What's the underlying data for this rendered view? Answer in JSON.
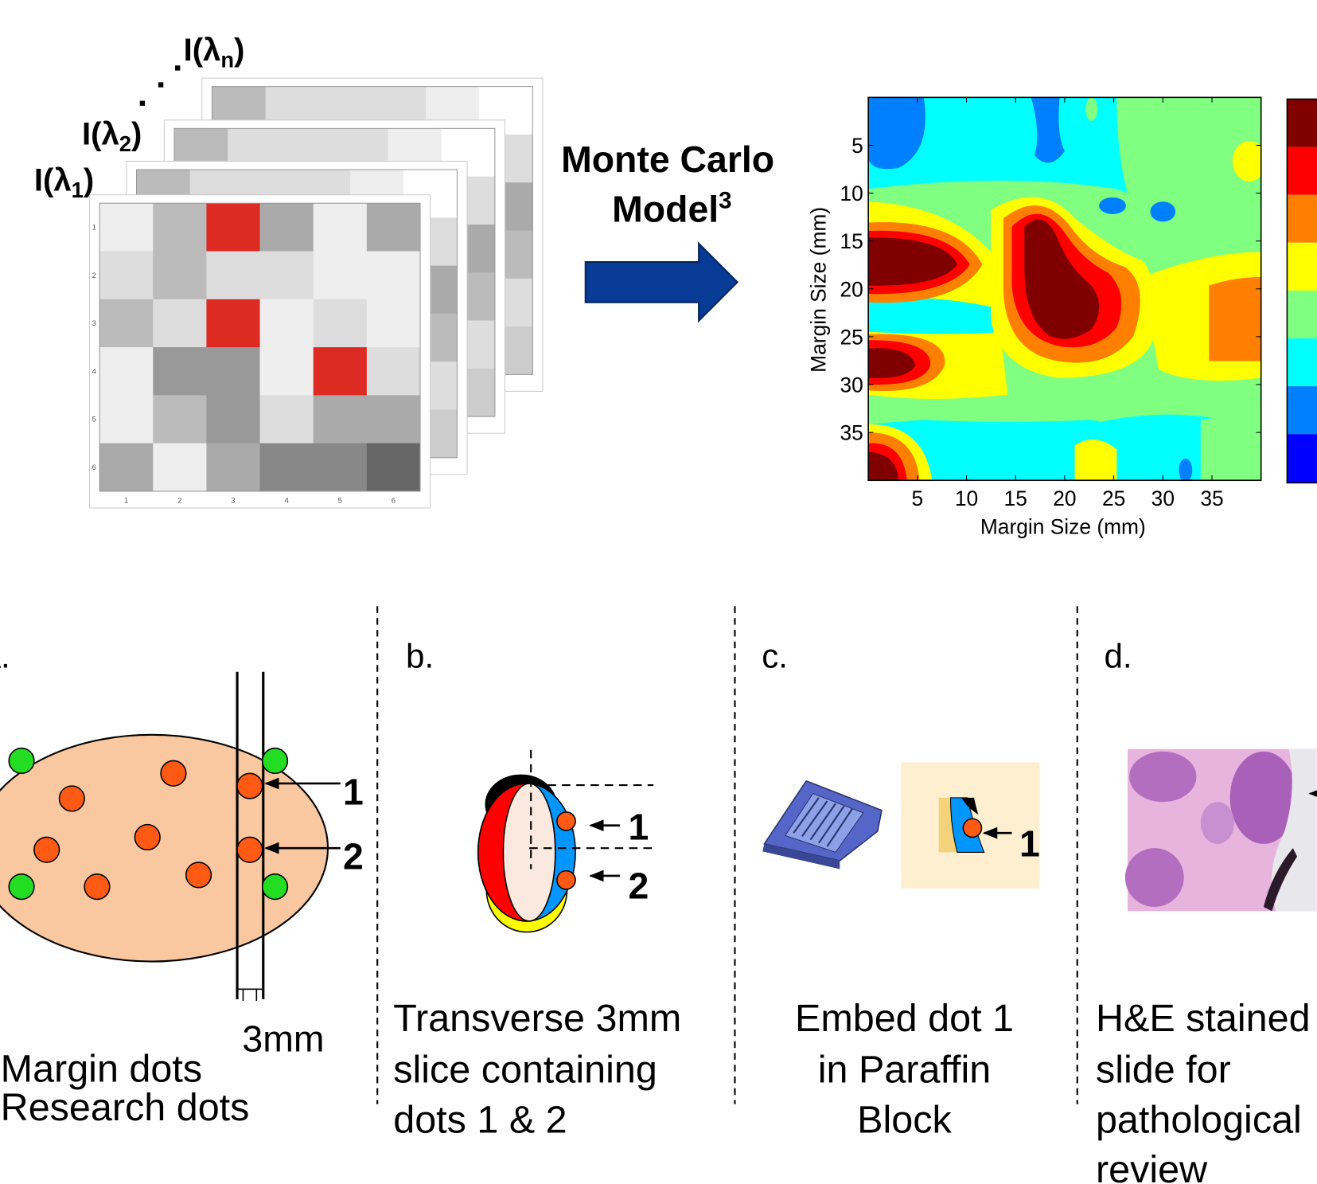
{
  "stack_labels": [
    {
      "prefix": "I(λ",
      "sub": "n",
      "suffix": ")"
    },
    {
      "prefix": "I(λ",
      "sub": "2",
      "suffix": ")"
    },
    {
      "prefix": "I(λ",
      "sub": "1",
      "suffix": ")"
    }
  ],
  "matrix_ticks": [
    1,
    2,
    3,
    4,
    5,
    6
  ],
  "model": {
    "line1": "Monte Carlo",
    "line2": "Model",
    "superscript": "3"
  },
  "heatmap": {
    "xlabel": "Margin Size (mm)",
    "ylabel": "Margin Size (mm)",
    "xlim": [
      0,
      40
    ],
    "ylim": [
      0,
      40
    ],
    "xticks": [
      5,
      10,
      15,
      20,
      25,
      30,
      35
    ],
    "yticks": [
      5,
      10,
      15,
      20,
      25,
      30,
      35
    ]
  },
  "panels": [
    {
      "letter": "a.",
      "markers": [
        "1",
        "2"
      ],
      "scale": "3mm",
      "caption": [
        "Margin dots",
        "Research dots"
      ]
    },
    {
      "letter": "b.",
      "markers": [
        "1",
        "2"
      ],
      "caption": [
        "Transverse 3mm",
        "slice containing",
        "dots 1 & 2"
      ]
    },
    {
      "letter": "c.",
      "markers": [
        "1"
      ],
      "caption": [
        "Embed dot 1",
        "in Paraffin",
        "Block"
      ]
    },
    {
      "letter": "d.",
      "caption": [
        "H&E stained",
        "slide for",
        "pathological",
        "review"
      ]
    }
  ]
}
